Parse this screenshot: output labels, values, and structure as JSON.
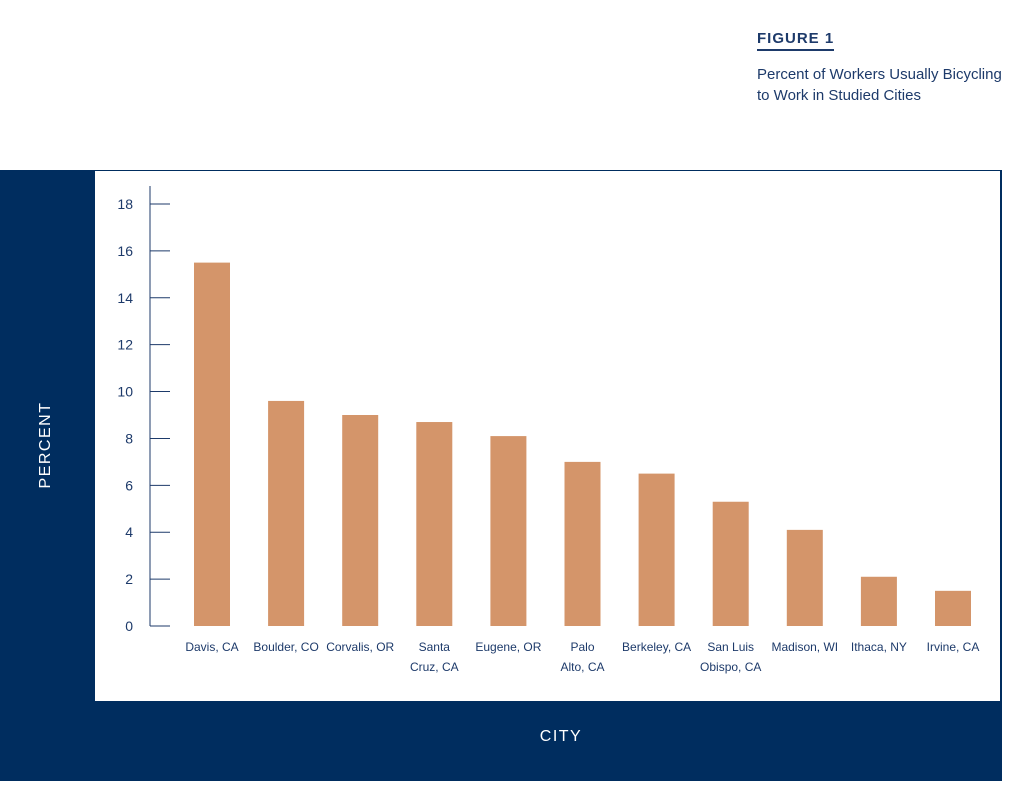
{
  "header": {
    "figure_label": "FIGURE 1",
    "title_line1": "Percent of Workers Usually Bicycling",
    "title_line2": "to Work in Studied Cities"
  },
  "chart_data": {
    "type": "bar",
    "title": "Percent of Workers Usually Bicycling to Work in Studied Cities",
    "xlabel": "CITY",
    "ylabel": "PERCENT",
    "ylim": [
      0,
      18
    ],
    "yticks": [
      0,
      2,
      4,
      6,
      8,
      10,
      12,
      14,
      16,
      18
    ],
    "categories": [
      [
        "Davis, CA"
      ],
      [
        "Boulder, CO"
      ],
      [
        "Corvalis, OR"
      ],
      [
        "Santa",
        "Cruz, CA"
      ],
      [
        "Eugene, OR"
      ],
      [
        "Palo",
        "Alto, CA"
      ],
      [
        "Berkeley, CA"
      ],
      [
        "San Luis",
        "Obispo, CA"
      ],
      [
        "Madison, WI"
      ],
      [
        "Ithaca, NY"
      ],
      [
        "Irvine, CA"
      ]
    ],
    "values": [
      15.5,
      9.6,
      9.0,
      8.7,
      8.1,
      7.0,
      6.5,
      5.3,
      4.1,
      2.1,
      1.5
    ],
    "bar_color": "#d4956a",
    "axis_color": "#1d3a6a",
    "frame_color": "#002d5f",
    "grid": false,
    "legend": "none"
  }
}
